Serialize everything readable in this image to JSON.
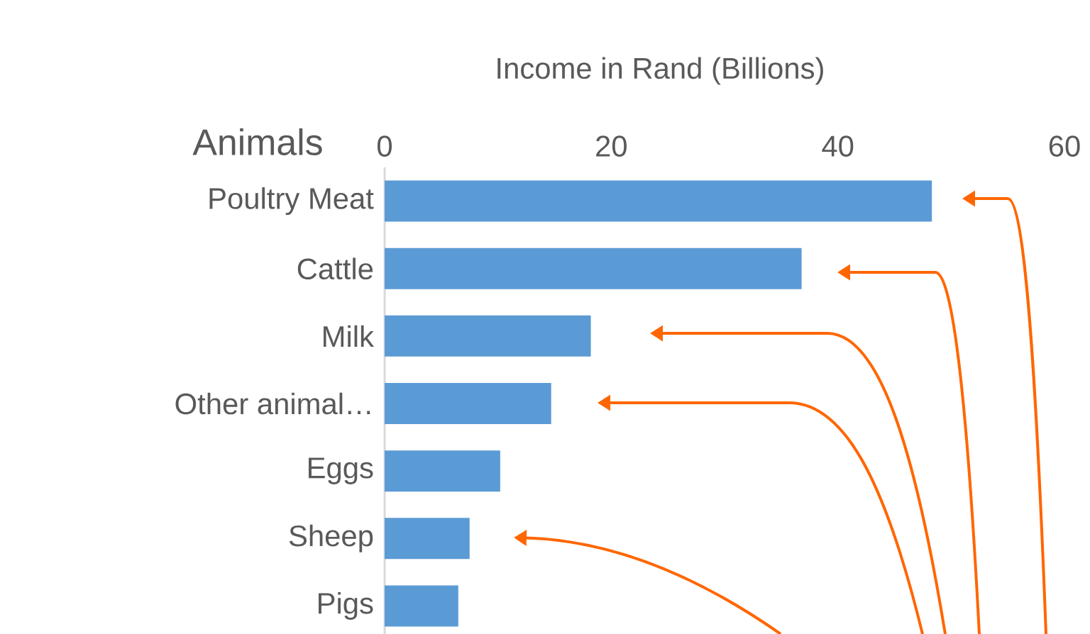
{
  "chart_data": {
    "type": "bar",
    "orientation": "horizontal",
    "xlabel": "Income in Rand (Billions)",
    "ylabel": "Animals",
    "categories": [
      "Poultry Meat",
      "Cattle",
      "Milk",
      "Other animal…",
      "Eggs",
      "Sheep",
      "Pigs"
    ],
    "values": [
      48.3,
      36.8,
      18.2,
      14.7,
      10.2,
      7.5,
      6.5
    ],
    "color": "#5b9bd5",
    "xlim": [
      0,
      60
    ],
    "xticks": [
      0,
      20,
      40,
      60
    ]
  }
}
